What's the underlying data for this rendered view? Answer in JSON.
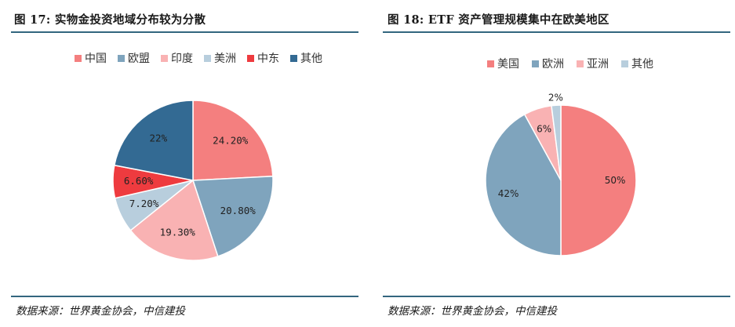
{
  "figures": [
    {
      "title": "图 17:  实物金投资地域分布较为分散",
      "source": "数据来源：世界黄金协会，中信建投"
    },
    {
      "title": "图 18: ETF 资产管理规模集中在欧美地区",
      "source": "数据来源：世界黄金协会，中信建投"
    }
  ],
  "chart_data": [
    {
      "type": "pie",
      "title": "图 17:  实物金投资地域分布较为分散",
      "legend_position": "top",
      "slices": [
        {
          "label": "中国",
          "value": 24.2,
          "display": "24.20%",
          "color": "#f47f7f"
        },
        {
          "label": "欧盟",
          "value": 20.8,
          "display": "20.80%",
          "color": "#7fa4bd"
        },
        {
          "label": "印度",
          "value": 19.3,
          "display": "19.30%",
          "color": "#f9b2b3"
        },
        {
          "label": "美洲",
          "value": 7.2,
          "display": "7.20%",
          "color": "#b8cedd"
        },
        {
          "label": "中东",
          "value": 6.6,
          "display": "6.60%",
          "color": "#ee3b3f"
        },
        {
          "label": "其他",
          "value": 22.0,
          "display": "22%",
          "color": "#336a93"
        }
      ]
    },
    {
      "type": "pie",
      "title": "图 18: ETF 资产管理规模集中在欧美地区",
      "legend_position": "top",
      "slices": [
        {
          "label": "美国",
          "value": 50,
          "display": "50%",
          "color": "#f47f7f"
        },
        {
          "label": "欧洲",
          "value": 42,
          "display": "42%",
          "color": "#7fa4bd"
        },
        {
          "label": "亚洲",
          "value": 6,
          "display": "6%",
          "color": "#f9b2b3"
        },
        {
          "label": "其他",
          "value": 2,
          "display": "2%",
          "color": "#b8cedd"
        }
      ]
    }
  ]
}
